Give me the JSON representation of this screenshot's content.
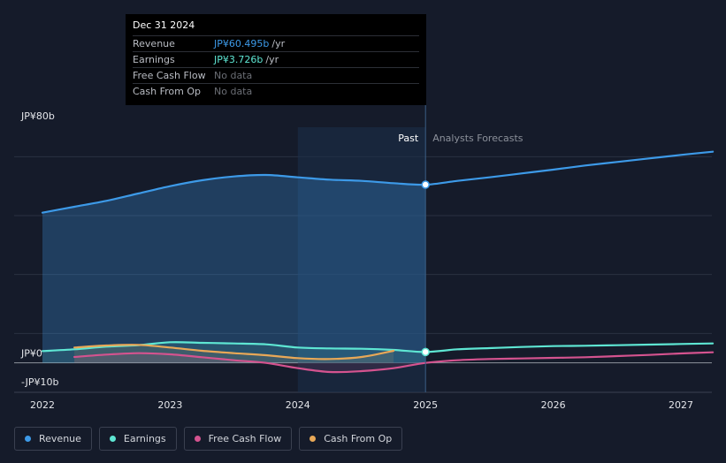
{
  "tooltip": {
    "date": "Dec 31 2024",
    "rows": [
      {
        "label": "Revenue",
        "value": "JP¥60.495b",
        "unit": "/yr",
        "color": "#3d9ae8"
      },
      {
        "label": "Earnings",
        "value": "JP¥3.726b",
        "unit": "/yr",
        "color": "#5ee6d3"
      },
      {
        "label": "Free Cash Flow",
        "value": "No data",
        "unit": "",
        "color": ""
      },
      {
        "label": "Cash From Op",
        "value": "No data",
        "unit": "",
        "color": ""
      }
    ]
  },
  "regions": {
    "past": "Past",
    "forecast": "Analysts Forecasts"
  },
  "legend": [
    {
      "label": "Revenue",
      "color": "#3d9ae8"
    },
    {
      "label": "Earnings",
      "color": "#5ee6d3"
    },
    {
      "label": "Free Cash Flow",
      "color": "#d4538f"
    },
    {
      "label": "Cash From Op",
      "color": "#e8a857"
    }
  ],
  "chart_data": {
    "type": "line",
    "y_unit": "JP¥ billions",
    "ylim": [
      -10,
      80
    ],
    "y_tick_labels": [
      {
        "value": 80,
        "label": "JP¥80b"
      },
      {
        "value": 0,
        "label": "JP¥0"
      },
      {
        "value": -10,
        "label": "-JP¥10b"
      }
    ],
    "x_ticks": [
      "2022",
      "2023",
      "2024",
      "2025",
      "2026",
      "2027"
    ],
    "past_forecast_divider": 2025.0,
    "series": [
      {
        "name": "Revenue",
        "color": "#3d9ae8",
        "points": [
          [
            2022.0,
            51.0
          ],
          [
            2022.25,
            53.0
          ],
          [
            2022.5,
            55.0
          ],
          [
            2022.75,
            57.5
          ],
          [
            2023.0,
            60.0
          ],
          [
            2023.25,
            62.0
          ],
          [
            2023.5,
            63.3
          ],
          [
            2023.75,
            63.8
          ],
          [
            2024.0,
            63.0
          ],
          [
            2024.25,
            62.2
          ],
          [
            2024.5,
            61.8
          ],
          [
            2024.75,
            61.0
          ],
          [
            2025.0,
            60.5
          ],
          [
            2025.25,
            61.8
          ],
          [
            2025.5,
            63.0
          ],
          [
            2025.75,
            64.3
          ],
          [
            2026.0,
            65.6
          ],
          [
            2026.25,
            67.0
          ],
          [
            2026.5,
            68.2
          ],
          [
            2026.75,
            69.4
          ],
          [
            2027.0,
            70.6
          ],
          [
            2027.25,
            71.7
          ]
        ]
      },
      {
        "name": "Earnings",
        "color": "#5ee6d3",
        "points": [
          [
            2022.0,
            4.0
          ],
          [
            2022.25,
            4.6
          ],
          [
            2022.5,
            5.5
          ],
          [
            2022.75,
            6.0
          ],
          [
            2023.0,
            7.0
          ],
          [
            2023.25,
            6.8
          ],
          [
            2023.5,
            6.6
          ],
          [
            2023.75,
            6.3
          ],
          [
            2024.0,
            5.2
          ],
          [
            2024.25,
            4.9
          ],
          [
            2024.5,
            4.8
          ],
          [
            2024.75,
            4.4
          ],
          [
            2025.0,
            3.7
          ],
          [
            2025.25,
            4.6
          ],
          [
            2025.5,
            5.0
          ],
          [
            2025.75,
            5.4
          ],
          [
            2026.0,
            5.7
          ],
          [
            2026.25,
            5.8
          ],
          [
            2026.5,
            6.0
          ],
          [
            2026.75,
            6.2
          ],
          [
            2027.0,
            6.4
          ],
          [
            2027.25,
            6.6
          ]
        ]
      },
      {
        "name": "Free Cash Flow",
        "color": "#d4538f",
        "points": [
          [
            2022.25,
            2.0
          ],
          [
            2022.5,
            2.8
          ],
          [
            2022.75,
            3.3
          ],
          [
            2023.0,
            2.9
          ],
          [
            2023.25,
            1.9
          ],
          [
            2023.5,
            0.9
          ],
          [
            2023.75,
            0.0
          ],
          [
            2024.0,
            -1.8
          ],
          [
            2024.25,
            -3.1
          ],
          [
            2024.5,
            -2.8
          ],
          [
            2024.75,
            -1.8
          ],
          [
            2025.0,
            0.0
          ],
          [
            2025.25,
            0.9
          ],
          [
            2025.5,
            1.3
          ],
          [
            2025.75,
            1.5
          ],
          [
            2026.0,
            1.7
          ],
          [
            2026.25,
            1.9
          ],
          [
            2026.5,
            2.3
          ],
          [
            2026.75,
            2.7
          ],
          [
            2027.0,
            3.2
          ],
          [
            2027.25,
            3.6
          ]
        ]
      },
      {
        "name": "Cash From Op",
        "color": "#e8a857",
        "points": [
          [
            2022.25,
            5.2
          ],
          [
            2022.5,
            5.9
          ],
          [
            2022.75,
            6.1
          ],
          [
            2023.0,
            5.2
          ],
          [
            2023.25,
            4.1
          ],
          [
            2023.5,
            3.3
          ],
          [
            2023.75,
            2.6
          ],
          [
            2024.0,
            1.6
          ],
          [
            2024.25,
            1.3
          ],
          [
            2024.5,
            2.0
          ],
          [
            2024.75,
            4.1
          ]
        ]
      }
    ]
  }
}
